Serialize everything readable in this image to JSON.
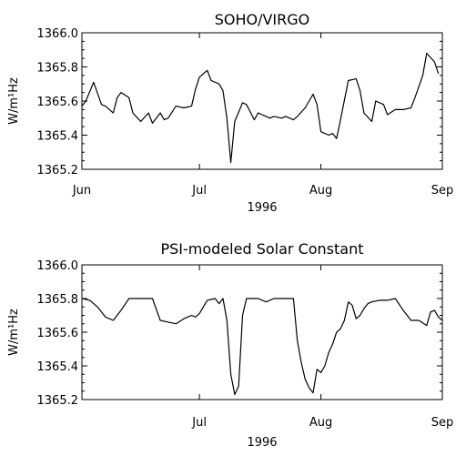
{
  "chart_data": [
    {
      "type": "line",
      "title": "SOHO/VIRGO",
      "xlabel": "1996",
      "ylabel": "W/m¹Hz",
      "ylim": [
        1365.2,
        1366.0
      ],
      "xlim": [
        "1996-06-01",
        "1996-09-01"
      ],
      "xticks": [
        "Jun",
        "Jul",
        "Aug",
        "Sep"
      ],
      "yticks": [
        "1365.2",
        "1365.4",
        "1365.6",
        "1365.8",
        "1366.0"
      ],
      "series": [
        {
          "x": [
            "1996-06-01",
            "1996-06-02",
            "1996-06-04",
            "1996-06-06",
            "1996-06-07",
            "1996-06-09",
            "1996-06-10",
            "1996-06-11",
            "1996-06-13",
            "1996-06-14",
            "1996-06-16",
            "1996-06-18",
            "1996-06-19",
            "1996-06-21",
            "1996-06-22",
            "1996-06-23",
            "1996-06-25",
            "1996-06-27",
            "1996-06-29",
            "1996-06-30",
            "1996-07-01",
            "1996-07-03",
            "1996-07-04",
            "1996-07-06",
            "1996-07-07",
            "1996-07-08",
            "1996-07-09",
            "1996-07-10",
            "1996-07-12",
            "1996-07-13",
            "1996-07-15",
            "1996-07-16",
            "1996-07-17",
            "1996-07-19",
            "1996-07-20",
            "1996-07-22",
            "1996-07-23",
            "1996-07-25",
            "1996-07-26",
            "1996-07-28",
            "1996-07-30",
            "1996-07-31",
            "1996-08-01",
            "1996-08-03",
            "1996-08-04",
            "1996-08-05",
            "1996-08-06",
            "1996-08-08",
            "1996-08-10",
            "1996-08-11",
            "1996-08-12",
            "1996-08-14",
            "1996-08-15",
            "1996-08-17",
            "1996-08-18",
            "1996-08-20",
            "1996-08-22",
            "1996-08-24",
            "1996-08-25",
            "1996-08-27",
            "1996-08-28",
            "1996-08-30",
            "1996-08-31"
          ],
          "y": [
            1365.57,
            1365.6,
            1365.71,
            1365.58,
            1365.57,
            1365.53,
            1365.62,
            1365.65,
            1365.62,
            1365.53,
            1365.48,
            1365.53,
            1365.47,
            1365.53,
            1365.49,
            1365.5,
            1365.57,
            1365.56,
            1365.57,
            1365.67,
            1365.74,
            1365.78,
            1365.72,
            1365.7,
            1365.66,
            1365.5,
            1365.24,
            1365.48,
            1365.59,
            1365.58,
            1365.49,
            1365.53,
            1365.52,
            1365.5,
            1365.51,
            1365.5,
            1365.51,
            1365.49,
            1365.51,
            1365.56,
            1365.64,
            1365.58,
            1365.42,
            1365.4,
            1365.41,
            1365.38,
            1365.49,
            1365.72,
            1365.73,
            1365.66,
            1365.53,
            1365.48,
            1365.6,
            1365.58,
            1365.52,
            1365.55,
            1365.55,
            1365.56,
            1365.62,
            1365.75,
            1365.88,
            1365.83,
            1365.76
          ]
        }
      ],
      "grid": false
    },
    {
      "type": "line",
      "title": "PSI-modeled Solar Constant",
      "xlabel": "1996",
      "ylabel": "W/m¹Hz",
      "ylim": [
        1365.2,
        1366.0
      ],
      "xlim": [
        "1996-06-01",
        "1996-09-01"
      ],
      "xticks": [
        "Jul",
        "Aug",
        "Sep"
      ],
      "yticks": [
        "1365.2",
        "1365.4",
        "1365.6",
        "1365.8",
        "1366.0"
      ],
      "series": [
        {
          "x": [
            "1996-06-01",
            "1996-06-03",
            "1996-06-05",
            "1996-06-07",
            "1996-06-09",
            "1996-06-11",
            "1996-06-13",
            "1996-06-15",
            "1996-06-17",
            "1996-06-19",
            "1996-06-21",
            "1996-06-23",
            "1996-06-25",
            "1996-06-27",
            "1996-06-29",
            "1996-06-30",
            "1996-07-01",
            "1996-07-03",
            "1996-07-05",
            "1996-07-06",
            "1996-07-07",
            "1996-07-08",
            "1996-07-09",
            "1996-07-10",
            "1996-07-11",
            "1996-07-12",
            "1996-07-13",
            "1996-07-14",
            "1996-07-16",
            "1996-07-18",
            "1996-07-20",
            "1996-07-22",
            "1996-07-24",
            "1996-07-25",
            "1996-07-26",
            "1996-07-27",
            "1996-07-28",
            "1996-07-29",
            "1996-07-30",
            "1996-07-31",
            "1996-08-01",
            "1996-08-02",
            "1996-08-03",
            "1996-08-04",
            "1996-08-05",
            "1996-08-06",
            "1996-08-07",
            "1996-08-08",
            "1996-08-09",
            "1996-08-10",
            "1996-08-11",
            "1996-08-12",
            "1996-08-13",
            "1996-08-14",
            "1996-08-16",
            "1996-08-18",
            "1996-08-20",
            "1996-08-22",
            "1996-08-24",
            "1996-08-26",
            "1996-08-28",
            "1996-08-29",
            "1996-08-30",
            "1996-08-31",
            "1996-09-01"
          ],
          "y": [
            1365.8,
            1365.79,
            1365.75,
            1365.69,
            1365.67,
            1365.73,
            1365.8,
            1365.8,
            1365.8,
            1365.8,
            1365.67,
            1365.66,
            1365.65,
            1365.68,
            1365.7,
            1365.69,
            1365.71,
            1365.79,
            1365.8,
            1365.77,
            1365.8,
            1365.67,
            1365.35,
            1365.23,
            1365.28,
            1365.7,
            1365.8,
            1365.8,
            1365.8,
            1365.78,
            1365.8,
            1365.8,
            1365.8,
            1365.8,
            1365.55,
            1365.42,
            1365.32,
            1365.27,
            1365.24,
            1365.38,
            1365.36,
            1365.4,
            1365.48,
            1365.53,
            1365.6,
            1365.62,
            1365.67,
            1365.78,
            1365.76,
            1365.68,
            1365.7,
            1365.74,
            1365.77,
            1365.78,
            1365.79,
            1365.79,
            1365.8,
            1365.73,
            1365.67,
            1365.67,
            1365.64,
            1365.72,
            1365.73,
            1365.69,
            1365.67
          ]
        }
      ],
      "grid": false
    }
  ]
}
